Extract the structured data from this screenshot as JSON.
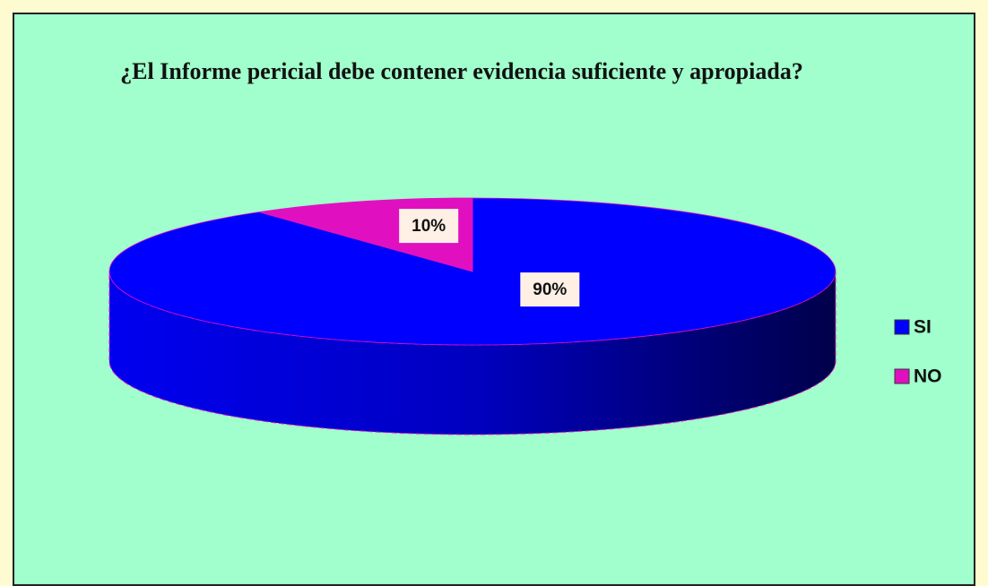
{
  "chart_data": {
    "type": "pie",
    "title": "¿El Informe pericial debe contener evidencia suficiente y apropiada?",
    "categories": [
      "SI",
      "NO"
    ],
    "values": [
      90,
      10
    ],
    "value_labels": [
      "90%",
      "10%"
    ],
    "colors": [
      "#0000ff",
      "#e010c0"
    ],
    "legend": "right"
  }
}
